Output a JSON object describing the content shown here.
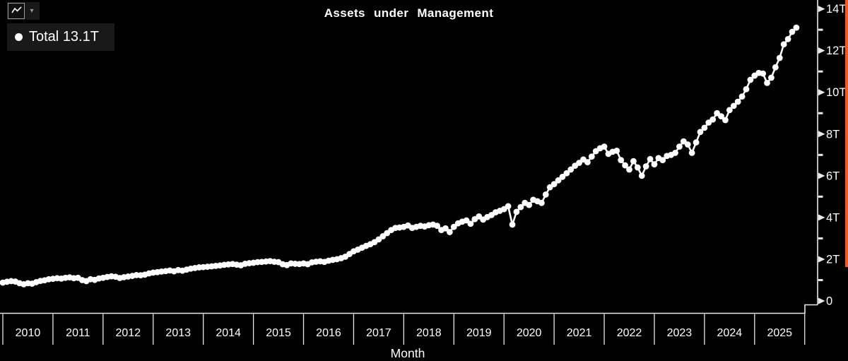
{
  "title": "Assets under Management",
  "toolbar": {
    "chart_type_icon": "line-chart-icon",
    "dropdown_glyph": "▾"
  },
  "legend": {
    "marker": "circle",
    "label": "Total",
    "value": "13.1T"
  },
  "colors": {
    "background": "#000000",
    "series_line": "#ffffff",
    "axis": "#e8e8e8",
    "text": "#ffffff",
    "legend_background": "#191919",
    "scrollbar_accent": "#f85a1d"
  },
  "y_axis": {
    "tick_labels": [
      "0",
      "2T",
      "4T",
      "6T",
      "8T",
      "10T",
      "12T",
      "14T"
    ]
  },
  "x_axis": {
    "label": "Month",
    "years": [
      "2010",
      "2011",
      "2012",
      "2013",
      "2014",
      "2015",
      "2016",
      "2017",
      "2018",
      "2019",
      "2020",
      "2021",
      "2022",
      "2023",
      "2024",
      "2025"
    ]
  },
  "chart_data": {
    "type": "line",
    "title": "Assets under Management",
    "xlabel": "Month",
    "ylabel": "",
    "unit": "T",
    "ylim": [
      0,
      14
    ],
    "x_start": "2010-01",
    "frequency": "monthly",
    "grid": false,
    "legend_position": "top-left",
    "marker": "circle",
    "series": [
      {
        "name": "Total",
        "last_value_label": "13.1T",
        "values": [
          0.88,
          0.92,
          0.95,
          0.93,
          0.85,
          0.8,
          0.85,
          0.83,
          0.9,
          0.96,
          0.99,
          1.04,
          1.06,
          1.09,
          1.07,
          1.11,
          1.13,
          1.09,
          1.11,
          1.0,
          0.95,
          1.04,
          1.01,
          1.08,
          1.11,
          1.15,
          1.18,
          1.16,
          1.1,
          1.14,
          1.17,
          1.2,
          1.24,
          1.23,
          1.26,
          1.32,
          1.36,
          1.38,
          1.41,
          1.43,
          1.46,
          1.42,
          1.48,
          1.45,
          1.5,
          1.55,
          1.58,
          1.61,
          1.62,
          1.64,
          1.66,
          1.68,
          1.7,
          1.73,
          1.75,
          1.77,
          1.74,
          1.71,
          1.78,
          1.81,
          1.83,
          1.86,
          1.87,
          1.89,
          1.91,
          1.88,
          1.86,
          1.76,
          1.72,
          1.8,
          1.78,
          1.77,
          1.8,
          1.76,
          1.85,
          1.88,
          1.9,
          1.87,
          1.93,
          1.97,
          2.0,
          2.05,
          2.12,
          2.25,
          2.38,
          2.46,
          2.55,
          2.64,
          2.72,
          2.82,
          2.95,
          3.1,
          3.25,
          3.4,
          3.5,
          3.52,
          3.55,
          3.62,
          3.5,
          3.55,
          3.6,
          3.57,
          3.63,
          3.66,
          3.6,
          3.4,
          3.48,
          3.3,
          3.55,
          3.72,
          3.8,
          3.86,
          3.7,
          3.92,
          4.05,
          3.9,
          4.02,
          4.12,
          4.25,
          4.32,
          4.4,
          4.54,
          3.66,
          4.27,
          4.5,
          4.7,
          4.6,
          4.85,
          4.78,
          4.7,
          5.1,
          5.45,
          5.6,
          5.78,
          5.95,
          6.12,
          6.3,
          6.48,
          6.62,
          6.78,
          6.65,
          6.92,
          7.18,
          7.32,
          7.4,
          7.05,
          7.15,
          7.2,
          6.75,
          6.5,
          6.3,
          6.7,
          6.4,
          6.0,
          6.45,
          6.8,
          6.55,
          6.85,
          6.75,
          6.95,
          7.0,
          7.1,
          7.4,
          7.65,
          7.5,
          7.1,
          7.6,
          8.1,
          8.3,
          8.55,
          8.7,
          9.0,
          8.85,
          8.67,
          9.15,
          9.35,
          9.55,
          9.8,
          10.15,
          10.6,
          10.8,
          10.93,
          10.9,
          10.45,
          10.7,
          11.2,
          11.65,
          12.3,
          12.55,
          12.9,
          13.1
        ]
      }
    ]
  }
}
